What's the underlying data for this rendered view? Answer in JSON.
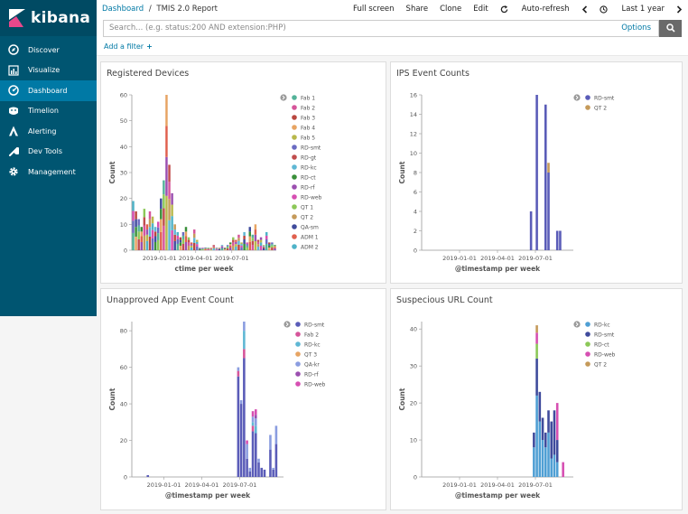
{
  "brand": {
    "name": "kibana"
  },
  "sidebar": {
    "items": [
      {
        "label": "Discover",
        "icon": "compass-icon"
      },
      {
        "label": "Visualize",
        "icon": "bar-chart-icon"
      },
      {
        "label": "Dashboard",
        "icon": "dashboard-icon",
        "active": true
      },
      {
        "label": "Timelion",
        "icon": "timelion-icon"
      },
      {
        "label": "Alerting",
        "icon": "alerting-icon"
      },
      {
        "label": "Dev Tools",
        "icon": "wrench-icon"
      },
      {
        "label": "Management",
        "icon": "gear-icon"
      }
    ]
  },
  "header": {
    "breadcrumb_root": "Dashboard",
    "breadcrumb_sep": "/",
    "breadcrumb_current": "TMIS 2.0 Report",
    "menu": {
      "full_screen": "Full screen",
      "share": "Share",
      "clone": "Clone",
      "edit": "Edit",
      "auto_refresh": "Auto-refresh",
      "time_range": "Last 1 year"
    }
  },
  "search": {
    "placeholder": "Search... (e.g. status:200 AND extension:PHP)",
    "options_label": "Options"
  },
  "filters": {
    "add_label": "Add a filter"
  },
  "colors": {
    "sidebar": "#005571",
    "active": "#0079a5",
    "link": "#0079a5"
  },
  "chart_data": [
    {
      "type": "bar",
      "title": "Registered Devices",
      "xlabel": "ctime per week",
      "ylabel": "Count",
      "ylim": [
        0,
        60
      ],
      "yticks": [
        0,
        10,
        20,
        30,
        40,
        50,
        60
      ],
      "x_min": 0,
      "x_max": 52,
      "xticks": [
        {
          "label": "2019-01-01",
          "x": 10
        },
        {
          "label": "2019-04-01",
          "x": 23
        },
        {
          "label": "2019-07-01",
          "x": 36
        }
      ],
      "legend_position": "right",
      "series": [
        {
          "name": "Fab 1",
          "color": "#54b399"
        },
        {
          "name": "Fab 2",
          "color": "#d6559a"
        },
        {
          "name": "Fab 3",
          "color": "#b9473f"
        },
        {
          "name": "Fab 4",
          "color": "#e7a463"
        },
        {
          "name": "Fab 5",
          "color": "#b8b84c"
        },
        {
          "name": "RD-smt",
          "color": "#6a6bc2"
        },
        {
          "name": "RD-gt",
          "color": "#c04d4d"
        },
        {
          "name": "RD-kc",
          "color": "#5fb7d4"
        },
        {
          "name": "RD-ct",
          "color": "#3a8f3a"
        },
        {
          "name": "RD-rf",
          "color": "#9b4fb0"
        },
        {
          "name": "RD-web",
          "color": "#d64fb2"
        },
        {
          "name": "QT 1",
          "color": "#8cc858"
        },
        {
          "name": "QT 2",
          "color": "#c59a5a"
        },
        {
          "name": "QA-sm",
          "color": "#3f4b9c"
        },
        {
          "name": "ADM 1",
          "color": "#e0604e"
        },
        {
          "name": "ADM 2",
          "color": "#4fb3c8"
        }
      ],
      "x": [
        0,
        1,
        2,
        3,
        4,
        5,
        6,
        7,
        8,
        9,
        10,
        11,
        12,
        13,
        14,
        15,
        16,
        17,
        18,
        19,
        20,
        21,
        22,
        23,
        24,
        25,
        26,
        27,
        28,
        29,
        30,
        31,
        32,
        33,
        34,
        35,
        36,
        37,
        38,
        39,
        40,
        41,
        42,
        43,
        44,
        45,
        46,
        47,
        48,
        49,
        50,
        51
      ],
      "totals": [
        19,
        15,
        12,
        9,
        16,
        10,
        15,
        13,
        9,
        11,
        20,
        27,
        60,
        33,
        22,
        10,
        7,
        5,
        7,
        9,
        5,
        3,
        8,
        4,
        1,
        1,
        1,
        1,
        1,
        2,
        1,
        1,
        2,
        1,
        2,
        3,
        5,
        4,
        6,
        3,
        7,
        3,
        9,
        6,
        10,
        4,
        5,
        2,
        7,
        3,
        3,
        2
      ]
    },
    {
      "type": "bar",
      "title": "IPS Event Counts",
      "xlabel": "@timestamp per week",
      "ylabel": "Count",
      "ylim": [
        0,
        16
      ],
      "yticks": [
        0,
        2,
        4,
        6,
        8,
        10,
        12,
        14,
        16
      ],
      "x_min": 0,
      "x_max": 52,
      "xticks": [
        {
          "label": "2019-01-01",
          "x": 13
        },
        {
          "label": "2019-04-01",
          "x": 26
        },
        {
          "label": "2019-07-01",
          "x": 39
        }
      ],
      "legend_position": "right",
      "series": [
        {
          "name": "RD-smt",
          "color": "#5a5cb8"
        },
        {
          "name": "QT 2",
          "color": "#c59a5a"
        }
      ],
      "x": [
        37,
        39,
        42,
        43,
        46,
        47
      ],
      "stacks": [
        [
          4,
          0
        ],
        [
          16,
          0
        ],
        [
          15,
          0
        ],
        [
          8,
          1
        ],
        [
          2,
          0
        ],
        [
          2,
          0
        ]
      ]
    },
    {
      "type": "bar",
      "title": "Unapproved App Event Count",
      "xlabel": "@timestamp per week",
      "ylabel": "Count",
      "ylim": [
        0,
        85
      ],
      "yticks": [
        0,
        20,
        40,
        60,
        80
      ],
      "x_min": 0,
      "x_max": 52,
      "xticks": [
        {
          "label": "2019-01-01",
          "x": 11
        },
        {
          "label": "2019-04-01",
          "x": 24
        },
        {
          "label": "2019-07-01",
          "x": 37
        }
      ],
      "legend_position": "right",
      "series": [
        {
          "name": "RD-smt",
          "color": "#5a5cb8"
        },
        {
          "name": "Fab 2",
          "color": "#d6559a"
        },
        {
          "name": "RD-kc",
          "color": "#5fb7d4"
        },
        {
          "name": "QT 3",
          "color": "#e7a463"
        },
        {
          "name": "QA-kr",
          "color": "#8b9de0"
        },
        {
          "name": "RD-rf",
          "color": "#9b4fb0"
        },
        {
          "name": "RD-web",
          "color": "#d64fb2"
        }
      ],
      "x": [
        5,
        36,
        37,
        38,
        39,
        40,
        41,
        42,
        43,
        44,
        45,
        47,
        48,
        49
      ],
      "stacks": [
        [
          1,
          0,
          0,
          0,
          0,
          0,
          0
        ],
        [
          55,
          3,
          0,
          0,
          2,
          0,
          0
        ],
        [
          40,
          0,
          0,
          0,
          2,
          0,
          0
        ],
        [
          65,
          5,
          10,
          0,
          5,
          0,
          0
        ],
        [
          10,
          0,
          0,
          0,
          8,
          0,
          2
        ],
        [
          3,
          0,
          0,
          0,
          2,
          0,
          0
        ],
        [
          25,
          3,
          2,
          0,
          3,
          0,
          3
        ],
        [
          24,
          0,
          4,
          0,
          4,
          2,
          3
        ],
        [
          8,
          0,
          0,
          0,
          2,
          0,
          0
        ],
        [
          5,
          0,
          0,
          0,
          0,
          0,
          0
        ],
        [
          4,
          0,
          0,
          0,
          0,
          0,
          0
        ],
        [
          15,
          0,
          0,
          0,
          8,
          0,
          0
        ],
        [
          4,
          0,
          0,
          0,
          1,
          0,
          0
        ],
        [
          18,
          0,
          0,
          0,
          10,
          0,
          0
        ]
      ]
    },
    {
      "type": "bar",
      "title": "Suspecious URL Count",
      "xlabel": "@timestamp per week",
      "ylabel": "Count",
      "ylim": [
        0,
        42
      ],
      "yticks": [
        0,
        10,
        20,
        30,
        40
      ],
      "x_min": 0,
      "x_max": 52,
      "xticks": [
        {
          "label": "2019-01-01",
          "x": 13
        },
        {
          "label": "2019-04-01",
          "x": 26
        },
        {
          "label": "2019-07-01",
          "x": 39
        }
      ],
      "legend_position": "right",
      "series": [
        {
          "name": "RD-kc",
          "color": "#4f9fd4"
        },
        {
          "name": "RD-smt",
          "color": "#3f4b9c"
        },
        {
          "name": "RD-ct",
          "color": "#8cc858"
        },
        {
          "name": "RD-web",
          "color": "#d64fb2"
        },
        {
          "name": "QT 2",
          "color": "#c59a5a"
        }
      ],
      "x": [
        38,
        39,
        40,
        41,
        42,
        43,
        44,
        45,
        46,
        48
      ],
      "stacks": [
        [
          8,
          4,
          0,
          0,
          0
        ],
        [
          22,
          10,
          4,
          3,
          2
        ],
        [
          15,
          8,
          0,
          0,
          0
        ],
        [
          10,
          6,
          0,
          0,
          0
        ],
        [
          8,
          4,
          0,
          0,
          0
        ],
        [
          12,
          6,
          0,
          0,
          0
        ],
        [
          5,
          10,
          0,
          0,
          0
        ],
        [
          6,
          12,
          0,
          0,
          0
        ],
        [
          4,
          6,
          0,
          10,
          0
        ],
        [
          0,
          0,
          0,
          4,
          0
        ]
      ]
    }
  ]
}
